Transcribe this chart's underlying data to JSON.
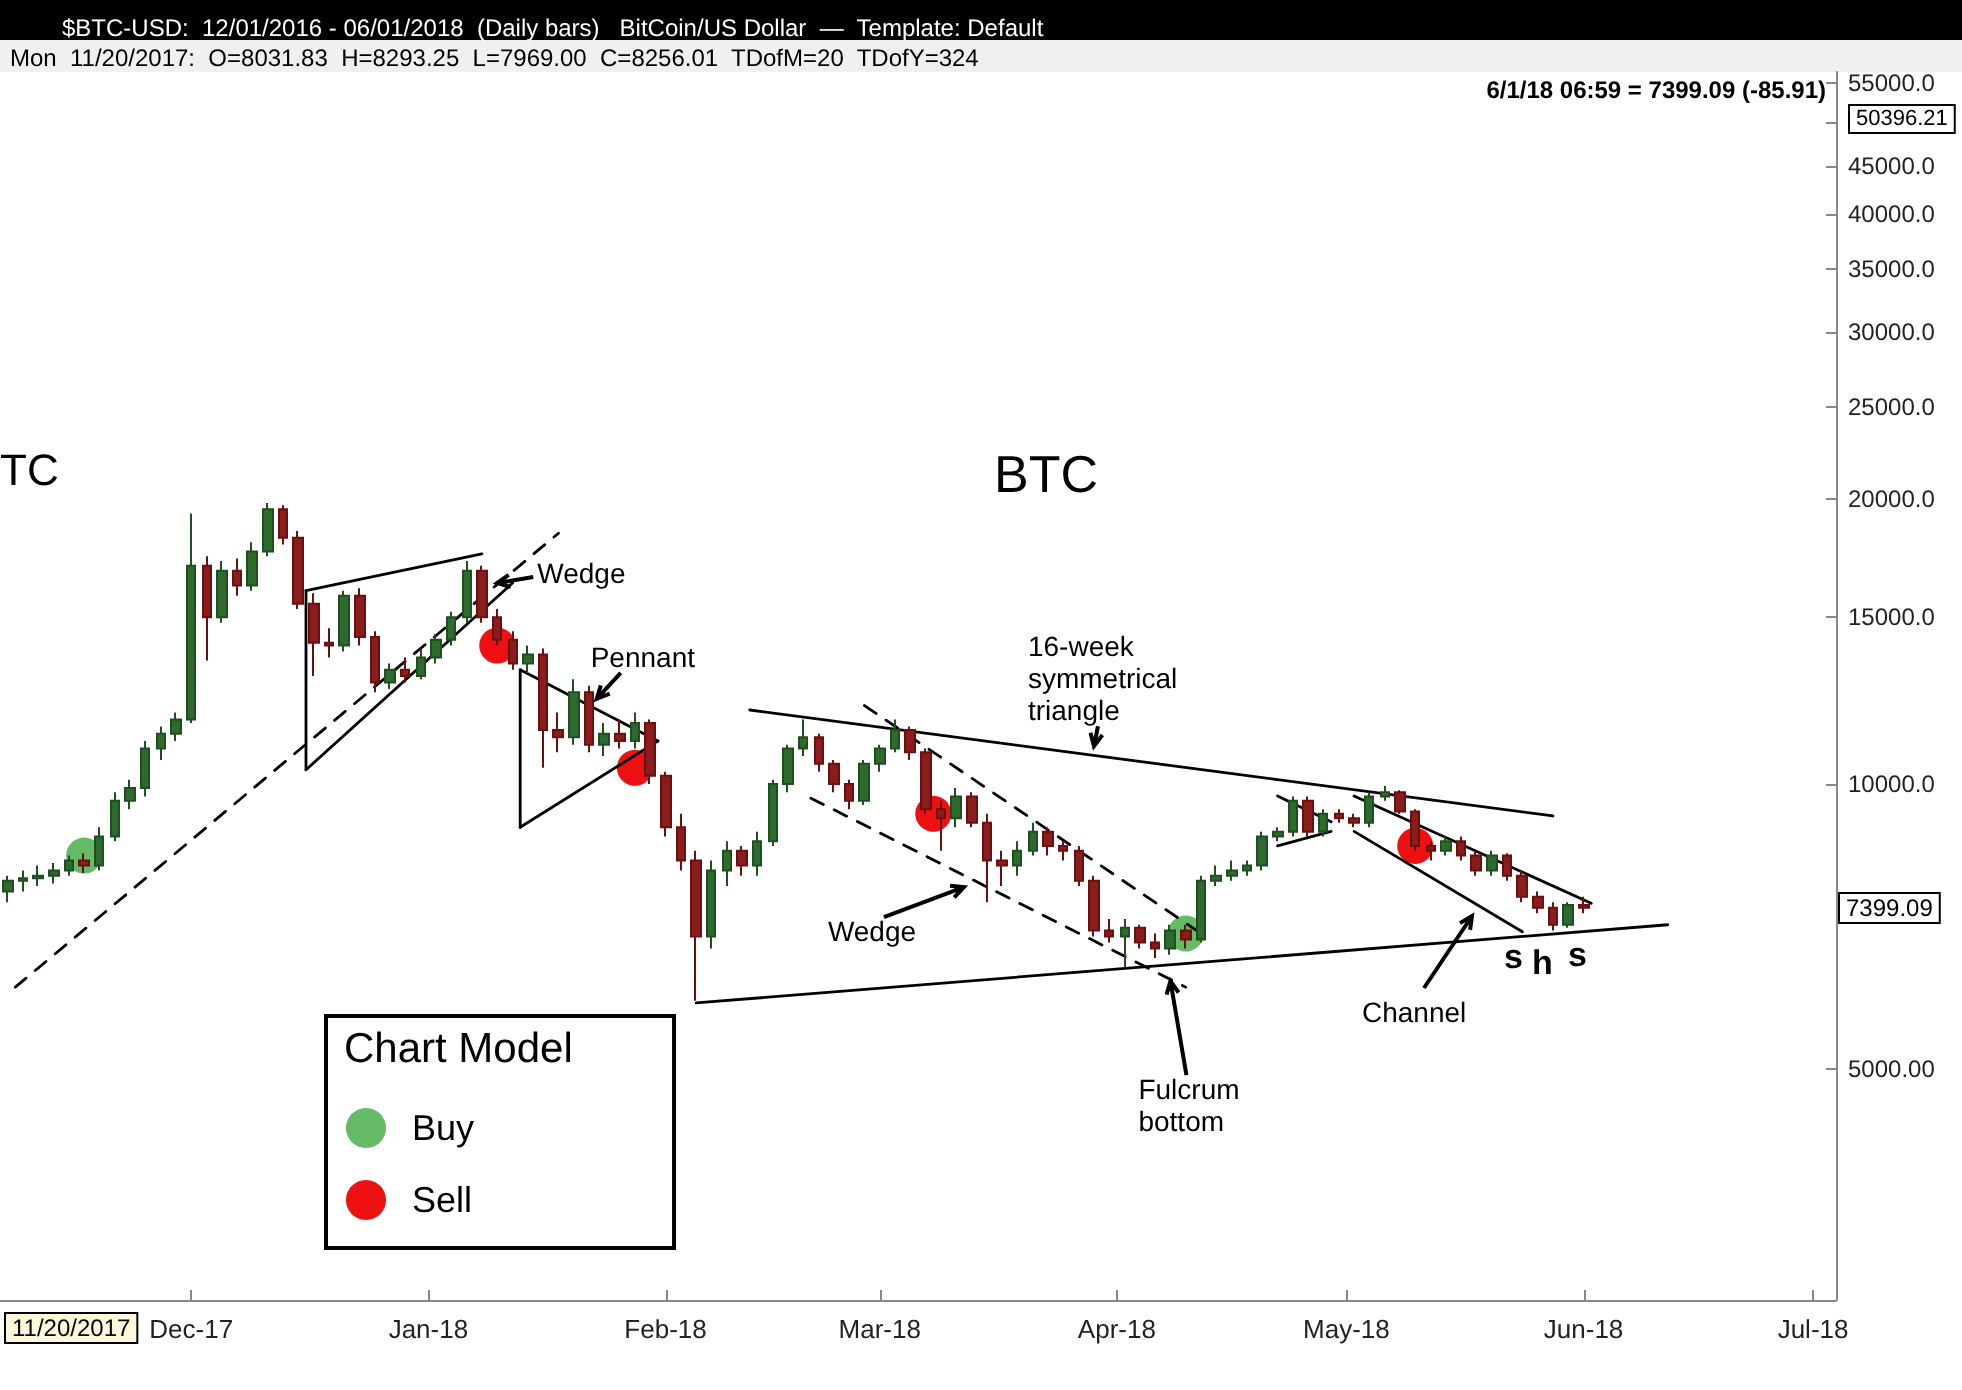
{
  "chart_data": {
    "type": "candlestick",
    "title": "$BTC-USD:  12/01/2016 - 06/01/2018  (Daily bars)   BitCoin/US Dollar  —  Template: Default",
    "x": [
      "2017-11-07",
      "2017-11-09",
      "2017-11-11",
      "2017-11-13",
      "2017-11-15",
      "2017-11-17",
      "2017-11-19",
      "2017-11-21",
      "2017-11-23",
      "2017-11-25",
      "2017-11-27",
      "2017-11-29",
      "2017-12-01",
      "2017-12-03",
      "2017-12-05",
      "2017-12-07",
      "2017-12-09",
      "2017-12-11",
      "2017-12-13",
      "2017-12-15",
      "2017-12-17",
      "2017-12-19",
      "2017-12-21",
      "2017-12-23",
      "2017-12-25",
      "2017-12-27",
      "2017-12-29",
      "2017-12-31",
      "2018-01-02",
      "2018-01-04",
      "2018-01-06",
      "2018-01-08",
      "2018-01-10",
      "2018-01-12",
      "2018-01-14",
      "2018-01-16",
      "2018-01-18",
      "2018-01-20",
      "2018-01-22",
      "2018-01-24",
      "2018-01-26",
      "2018-01-28",
      "2018-01-30",
      "2018-02-01",
      "2018-02-03",
      "2018-02-05",
      "2018-02-07",
      "2018-02-09",
      "2018-02-11",
      "2018-02-13",
      "2018-02-15",
      "2018-02-17",
      "2018-02-19",
      "2018-02-21",
      "2018-02-23",
      "2018-02-25",
      "2018-02-27",
      "2018-03-01",
      "2018-03-03",
      "2018-03-05",
      "2018-03-07",
      "2018-03-09",
      "2018-03-11",
      "2018-03-13",
      "2018-03-15",
      "2018-03-17",
      "2018-03-19",
      "2018-03-21",
      "2018-03-23",
      "2018-03-25",
      "2018-03-27",
      "2018-03-29",
      "2018-03-31",
      "2018-04-02",
      "2018-04-04",
      "2018-04-06",
      "2018-04-08",
      "2018-04-10",
      "2018-04-12",
      "2018-04-14",
      "2018-04-16",
      "2018-04-18",
      "2018-04-20",
      "2018-04-22",
      "2018-04-24",
      "2018-04-26",
      "2018-04-28",
      "2018-04-30",
      "2018-05-02",
      "2018-05-04",
      "2018-05-06",
      "2018-05-08",
      "2018-05-10",
      "2018-05-12",
      "2018-05-14",
      "2018-05-16",
      "2018-05-18",
      "2018-05-20",
      "2018-05-22",
      "2018-05-24",
      "2018-05-26",
      "2018-05-28",
      "2018-05-30",
      "2018-06-01"
    ],
    "ohlc": [
      [
        7700,
        8000,
        7500,
        7900
      ],
      [
        7900,
        8100,
        7700,
        7950
      ],
      [
        7950,
        8200,
        7800,
        8000
      ],
      [
        8000,
        8250,
        7850,
        8100
      ],
      [
        8100,
        8400,
        8000,
        8300
      ],
      [
        8300,
        8450,
        8050,
        8200
      ],
      [
        8200,
        9000,
        8100,
        8800
      ],
      [
        8800,
        9800,
        8700,
        9600
      ],
      [
        9600,
        10100,
        9400,
        9900
      ],
      [
        9900,
        11100,
        9700,
        10900
      ],
      [
        10900,
        11500,
        10600,
        11300
      ],
      [
        11300,
        11900,
        11100,
        11700
      ],
      [
        11700,
        19300,
        11600,
        17000
      ],
      [
        17000,
        17400,
        13500,
        15000
      ],
      [
        15000,
        17200,
        14800,
        16800
      ],
      [
        16800,
        17300,
        15800,
        16200
      ],
      [
        16200,
        18000,
        16000,
        17600
      ],
      [
        17600,
        19800,
        17400,
        19500
      ],
      [
        19500,
        19700,
        17900,
        18200
      ],
      [
        18200,
        18500,
        15300,
        15500
      ],
      [
        15500,
        15900,
        13000,
        14100
      ],
      [
        14100,
        14600,
        13600,
        14000
      ],
      [
        14000,
        16000,
        13800,
        15800
      ],
      [
        15800,
        16100,
        14000,
        14300
      ],
      [
        14300,
        14500,
        12500,
        12800
      ],
      [
        12800,
        13400,
        12600,
        13200
      ],
      [
        13200,
        13600,
        12800,
        13000
      ],
      [
        13000,
        13900,
        12900,
        13600
      ],
      [
        13600,
        14400,
        13400,
        14200
      ],
      [
        14200,
        15200,
        14000,
        15000
      ],
      [
        15000,
        17200,
        14800,
        16800
      ],
      [
        16800,
        17000,
        14800,
        15000
      ],
      [
        15000,
        15300,
        14000,
        14200
      ],
      [
        14200,
        14500,
        13200,
        13400
      ],
      [
        13400,
        14000,
        13100,
        13700
      ],
      [
        13700,
        13900,
        10400,
        11400
      ],
      [
        11400,
        11900,
        10800,
        11200
      ],
      [
        11200,
        12900,
        11000,
        12500
      ],
      [
        12500,
        12700,
        10800,
        11000
      ],
      [
        11000,
        11600,
        10700,
        11300
      ],
      [
        11300,
        11700,
        10900,
        11100
      ],
      [
        11100,
        11900,
        10900,
        11600
      ],
      [
        11600,
        11700,
        10000,
        10200
      ],
      [
        10200,
        10300,
        8800,
        9000
      ],
      [
        9000,
        9300,
        8100,
        8300
      ],
      [
        8300,
        8500,
        5900,
        6900
      ],
      [
        6900,
        8300,
        6700,
        8100
      ],
      [
        8100,
        8700,
        7800,
        8500
      ],
      [
        8500,
        8600,
        8000,
        8200
      ],
      [
        8200,
        8900,
        8000,
        8700
      ],
      [
        8700,
        10100,
        8600,
        10000
      ],
      [
        10000,
        11000,
        9800,
        10900
      ],
      [
        10900,
        11700,
        10700,
        11200
      ],
      [
        11200,
        11300,
        10300,
        10500
      ],
      [
        10500,
        10600,
        9800,
        10000
      ],
      [
        10000,
        10100,
        9400,
        9600
      ],
      [
        9600,
        10600,
        9500,
        10500
      ],
      [
        10500,
        11000,
        10300,
        10900
      ],
      [
        10900,
        11700,
        10800,
        11400
      ],
      [
        11400,
        11500,
        10600,
        10800
      ],
      [
        10800,
        10900,
        9300,
        9400
      ],
      [
        9400,
        9600,
        8500,
        9200
      ],
      [
        9200,
        9900,
        9000,
        9700
      ],
      [
        9700,
        9800,
        9000,
        9100
      ],
      [
        9100,
        9300,
        7500,
        8300
      ],
      [
        8300,
        8500,
        7800,
        8200
      ],
      [
        8200,
        8700,
        8000,
        8500
      ],
      [
        8500,
        9100,
        8400,
        8900
      ],
      [
        8900,
        9000,
        8400,
        8600
      ],
      [
        8600,
        8700,
        8300,
        8500
      ],
      [
        8500,
        8600,
        7800,
        7900
      ],
      [
        7900,
        8000,
        6900,
        7000
      ],
      [
        7000,
        7200,
        6800,
        6900
      ],
      [
        6900,
        7200,
        6400,
        7050
      ],
      [
        7050,
        7100,
        6700,
        6800
      ],
      [
        6800,
        6950,
        6550,
        6700
      ],
      [
        6700,
        7100,
        6600,
        7000
      ],
      [
        7000,
        7100,
        6700,
        6850
      ],
      [
        6850,
        8000,
        6800,
        7900
      ],
      [
        7900,
        8200,
        7800,
        8000
      ],
      [
        8000,
        8300,
        7900,
        8100
      ],
      [
        8100,
        8300,
        8000,
        8200
      ],
      [
        8200,
        8900,
        8100,
        8800
      ],
      [
        8800,
        9000,
        8700,
        8900
      ],
      [
        8900,
        9700,
        8800,
        9600
      ],
      [
        9600,
        9700,
        8800,
        8900
      ],
      [
        8900,
        9400,
        8800,
        9300
      ],
      [
        9300,
        9400,
        9100,
        9200
      ],
      [
        9200,
        9300,
        9000,
        9100
      ],
      [
        9100,
        9800,
        9000,
        9700
      ],
      [
        9700,
        9950,
        9600,
        9800
      ],
      [
        9800,
        9850,
        9300,
        9350
      ],
      [
        9350,
        9400,
        8500,
        8600
      ],
      [
        8600,
        8700,
        8300,
        8500
      ],
      [
        8500,
        8800,
        8400,
        8700
      ],
      [
        8700,
        8800,
        8300,
        8400
      ],
      [
        8400,
        8500,
        8000,
        8100
      ],
      [
        8100,
        8500,
        8000,
        8400
      ],
      [
        8400,
        8450,
        7900,
        8000
      ],
      [
        8000,
        8100,
        7500,
        7600
      ],
      [
        7600,
        7700,
        7300,
        7400
      ],
      [
        7400,
        7500,
        7000,
        7100
      ],
      [
        7100,
        7500,
        7050,
        7450
      ],
      [
        7450,
        7600,
        7300,
        7399.09
      ]
    ],
    "series": [
      {
        "type": "line",
        "line_style": "solid",
        "color": "#000000",
        "x": [
          "2017-12-16",
          "2018-01-08"
        ],
        "values": [
          16000,
          17500
        ]
      },
      {
        "type": "line",
        "line_style": "solid",
        "color": "#000000",
        "x": [
          "2017-12-16",
          "2018-01-12"
        ],
        "values": [
          10350,
          16300
        ]
      },
      {
        "type": "line",
        "line_style": "solid",
        "color": "#000000",
        "x": [
          "2017-12-16",
          "2017-12-16"
        ],
        "values": [
          10350,
          16000
        ]
      },
      {
        "type": "line",
        "line_style": "dashed",
        "color": "#000000",
        "x": [
          "2017-11-08",
          "2018-01-18"
        ],
        "values": [
          6100,
          18400
        ]
      },
      {
        "type": "line",
        "line_style": "solid",
        "color": "#000000",
        "x": [
          "2018-01-13",
          "2018-01-31"
        ],
        "values": [
          13200,
          11100
        ]
      },
      {
        "type": "line",
        "line_style": "solid",
        "color": "#000000",
        "x": [
          "2018-01-13",
          "2018-01-31"
        ],
        "values": [
          9000,
          11100
        ]
      },
      {
        "type": "line",
        "line_style": "solid",
        "color": "#000000",
        "x": [
          "2018-01-13",
          "2018-01-13"
        ],
        "values": [
          9000,
          13200
        ]
      },
      {
        "type": "line",
        "line_style": "solid",
        "color": "#000000",
        "x": [
          "2018-02-12",
          "2018-05-28"
        ],
        "values": [
          11970,
          9250
        ]
      },
      {
        "type": "line",
        "line_style": "solid",
        "color": "#000000",
        "x": [
          "2018-02-05",
          "2018-06-12"
        ],
        "values": [
          5870,
          7100
        ]
      },
      {
        "type": "line",
        "line_style": "dashed",
        "color": "#000000",
        "x": [
          "2018-02-27",
          "2018-04-12"
        ],
        "values": [
          12100,
          6950
        ]
      },
      {
        "type": "line",
        "line_style": "dashed",
        "color": "#000000",
        "x": [
          "2018-02-20",
          "2018-04-10"
        ],
        "values": [
          9660,
          6100
        ]
      },
      {
        "type": "line",
        "line_style": "solid",
        "color": "#000000",
        "x": [
          "2018-04-22",
          "2018-04-29"
        ],
        "values": [
          9710,
          9120
        ]
      },
      {
        "type": "line",
        "line_style": "solid",
        "color": "#000000",
        "x": [
          "2018-04-22",
          "2018-04-29"
        ],
        "values": [
          8600,
          8910
        ]
      },
      {
        "type": "line",
        "line_style": "solid",
        "color": "#000000",
        "x": [
          "2018-05-02",
          "2018-06-02"
        ],
        "values": [
          9710,
          7480
        ]
      },
      {
        "type": "line",
        "line_style": "solid",
        "color": "#000000",
        "x": [
          "2018-05-02",
          "2018-05-24"
        ],
        "values": [
          8910,
          6980
        ]
      },
      {
        "type": "scatter",
        "name": "Buy",
        "color": "#66bb66",
        "marker": "circle",
        "x": [
          "2017-11-17",
          "2018-04-10"
        ],
        "values": [
          8400,
          6950
        ]
      },
      {
        "type": "scatter",
        "name": "Sell",
        "color": "#ee1111",
        "marker": "circle",
        "x": [
          "2018-01-10",
          "2018-01-28",
          "2018-03-08",
          "2018-05-10"
        ],
        "values": [
          14000,
          10400,
          9300,
          8600
        ]
      }
    ],
    "log": "y",
    "ylim": [
      2850,
      56500
    ],
    "yticks": [
      {
        "value": 5000,
        "label": "5000.00"
      },
      {
        "value": 10000,
        "label": "10000.0"
      },
      {
        "value": 15000,
        "label": "15000.0"
      },
      {
        "value": 20000,
        "label": "20000.0"
      },
      {
        "value": 25000,
        "label": "25000.0"
      },
      {
        "value": 30000,
        "label": "30000.0"
      },
      {
        "value": 35000,
        "label": "35000.0"
      },
      {
        "value": 40000,
        "label": "40000.0"
      },
      {
        "value": 45000,
        "label": "45000.0"
      },
      {
        "value": 50000,
        "label": null
      },
      {
        "value": 55000,
        "label": "55000.0"
      }
    ],
    "xlim": [
      "2017-11-06",
      "2018-07-04"
    ],
    "xticks": [
      {
        "value": "2017-12-01",
        "label": "Dec-17"
      },
      {
        "value": "2018-01-01",
        "label": "Jan-18"
      },
      {
        "value": "2018-02-01",
        "label": "Feb-18"
      },
      {
        "value": "2018-03-01",
        "label": "Mar-18"
      },
      {
        "value": "2018-04-01",
        "label": "Apr-18"
      },
      {
        "value": "2018-05-01",
        "label": "May-18"
      },
      {
        "value": "2018-06-01",
        "label": "Jun-18"
      },
      {
        "value": "2018-07-01",
        "label": "Jul-18"
      }
    ],
    "grid": false,
    "legend": "bottom left",
    "legend_title": "Chart Model",
    "annotations": [
      {
        "text": "Wedge",
        "x": "2018-01-10",
        "y": 16300
      },
      {
        "text": "Pennant",
        "x": "2018-01-23",
        "y": 12300
      },
      {
        "text": "16-week\nsymmetrical\ntriangle",
        "x": "2018-03-29",
        "y": 10960
      },
      {
        "text": "Wedge",
        "x": "2018-03-12",
        "y": 7780
      },
      {
        "text": "Fulcrum\nbottom",
        "x": "2018-04-08",
        "y": 6190
      },
      "Mon  11/20/2017:  O=8031.83  H=8293.25  L=7969.00  C=8256.01  TDofM=20  TDofY=324",
      "6/1/18 06:59 = 7399.09 (-85.91)",
      "50396.21",
      "11/20/2017",
      "BTC",
      "TC",
      "Channel",
      "s",
      "h",
      "s",
      "7399.09"
    ]
  }
}
